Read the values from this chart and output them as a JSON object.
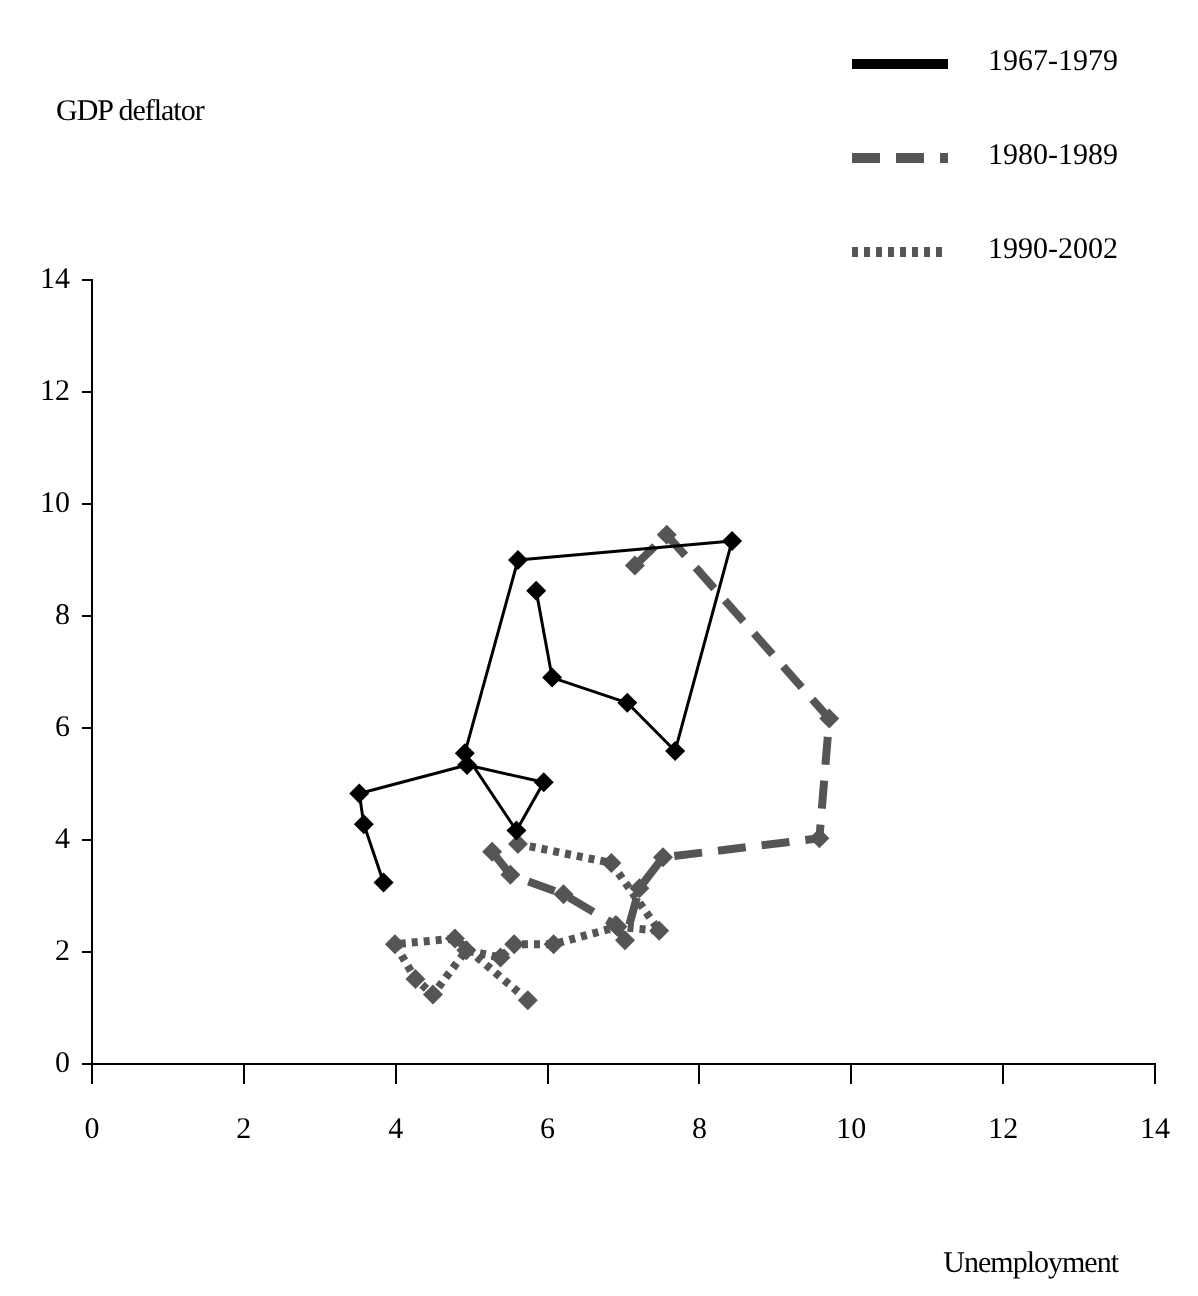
{
  "chart_data": {
    "type": "line",
    "xlabel": "Unemployment",
    "ylabel": "GDP deflator",
    "xlim": [
      0,
      14
    ],
    "ylim": [
      0,
      14
    ],
    "xticks": [
      0,
      2,
      4,
      6,
      8,
      10,
      12,
      14
    ],
    "yticks": [
      0,
      2,
      4,
      6,
      8,
      10,
      12,
      14
    ],
    "grid": false,
    "legend": "top right",
    "marker": "diamond",
    "series": [
      {
        "name": "1967-1979",
        "color": "#000000",
        "line_style": "solid",
        "x": [
          3.84,
          3.58,
          3.52,
          4.94,
          5.95,
          5.59,
          4.91,
          5.61,
          8.43,
          7.68,
          7.05,
          6.06,
          5.85
        ],
        "values": [
          3.24,
          4.28,
          4.83,
          5.34,
          5.03,
          4.17,
          5.55,
          9.0,
          9.34,
          5.59,
          6.45,
          6.9,
          8.45
        ]
      },
      {
        "name": "1980-1989",
        "color": "#555555",
        "line_style": "dashed",
        "x": [
          7.15,
          7.57,
          9.71,
          9.58,
          7.52,
          7.21,
          7.02,
          6.9,
          6.21,
          5.51,
          5.27
        ],
        "values": [
          8.9,
          9.45,
          6.17,
          4.03,
          3.69,
          3.14,
          2.21,
          2.48,
          3.03,
          3.38,
          3.79
        ]
      },
      {
        "name": "1990-2002",
        "color": "#555555",
        "line_style": "dotted",
        "x": [
          5.61,
          6.84,
          7.47,
          6.92,
          6.08,
          5.56,
          5.38,
          4.93,
          4.49,
          4.26,
          3.99,
          4.78,
          5.74
        ],
        "values": [
          3.93,
          3.59,
          2.38,
          2.45,
          2.14,
          2.14,
          1.9,
          2.03,
          1.24,
          1.52,
          2.14,
          2.24,
          1.14
        ]
      }
    ]
  }
}
